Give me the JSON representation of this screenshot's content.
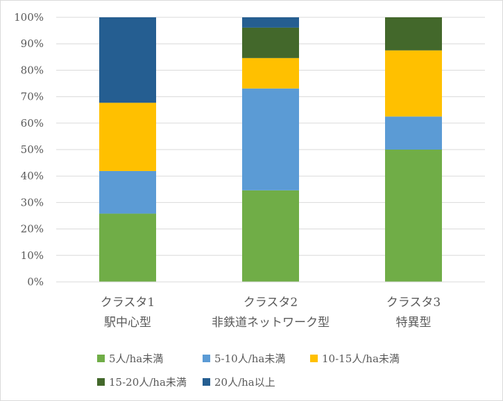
{
  "chart_data": {
    "type": "bar",
    "stacked": true,
    "percent": true,
    "categories": [
      [
        "クラスタ1",
        "駅中心型"
      ],
      [
        "クラスタ2",
        "非鉄道ネットワーク型"
      ],
      [
        "クラスタ3",
        "特異型"
      ]
    ],
    "series": [
      {
        "name": "5人/ha未満",
        "color": "#70ad47",
        "values": [
          25.8,
          34.6,
          50.0
        ]
      },
      {
        "name": "5-10人/ha未満",
        "color": "#5b9bd5",
        "values": [
          16.1,
          38.5,
          12.5
        ]
      },
      {
        "name": "10-15人/ha未満",
        "color": "#ffc000",
        "values": [
          25.8,
          11.5,
          25.0
        ]
      },
      {
        "name": "15-20人/ha未満",
        "color": "#43682b",
        "values": [
          0.0,
          11.5,
          12.5
        ]
      },
      {
        "name": "20人/ha以上",
        "color": "#255e91",
        "values": [
          32.3,
          3.9,
          0.0
        ]
      }
    ],
    "ylim": [
      0,
      100
    ],
    "yticks": [
      "0%",
      "10%",
      "20%",
      "30%",
      "40%",
      "50%",
      "60%",
      "70%",
      "80%",
      "90%",
      "100%"
    ],
    "grid": true,
    "legend": "bottom",
    "title": "",
    "xlabel": "",
    "ylabel": ""
  }
}
